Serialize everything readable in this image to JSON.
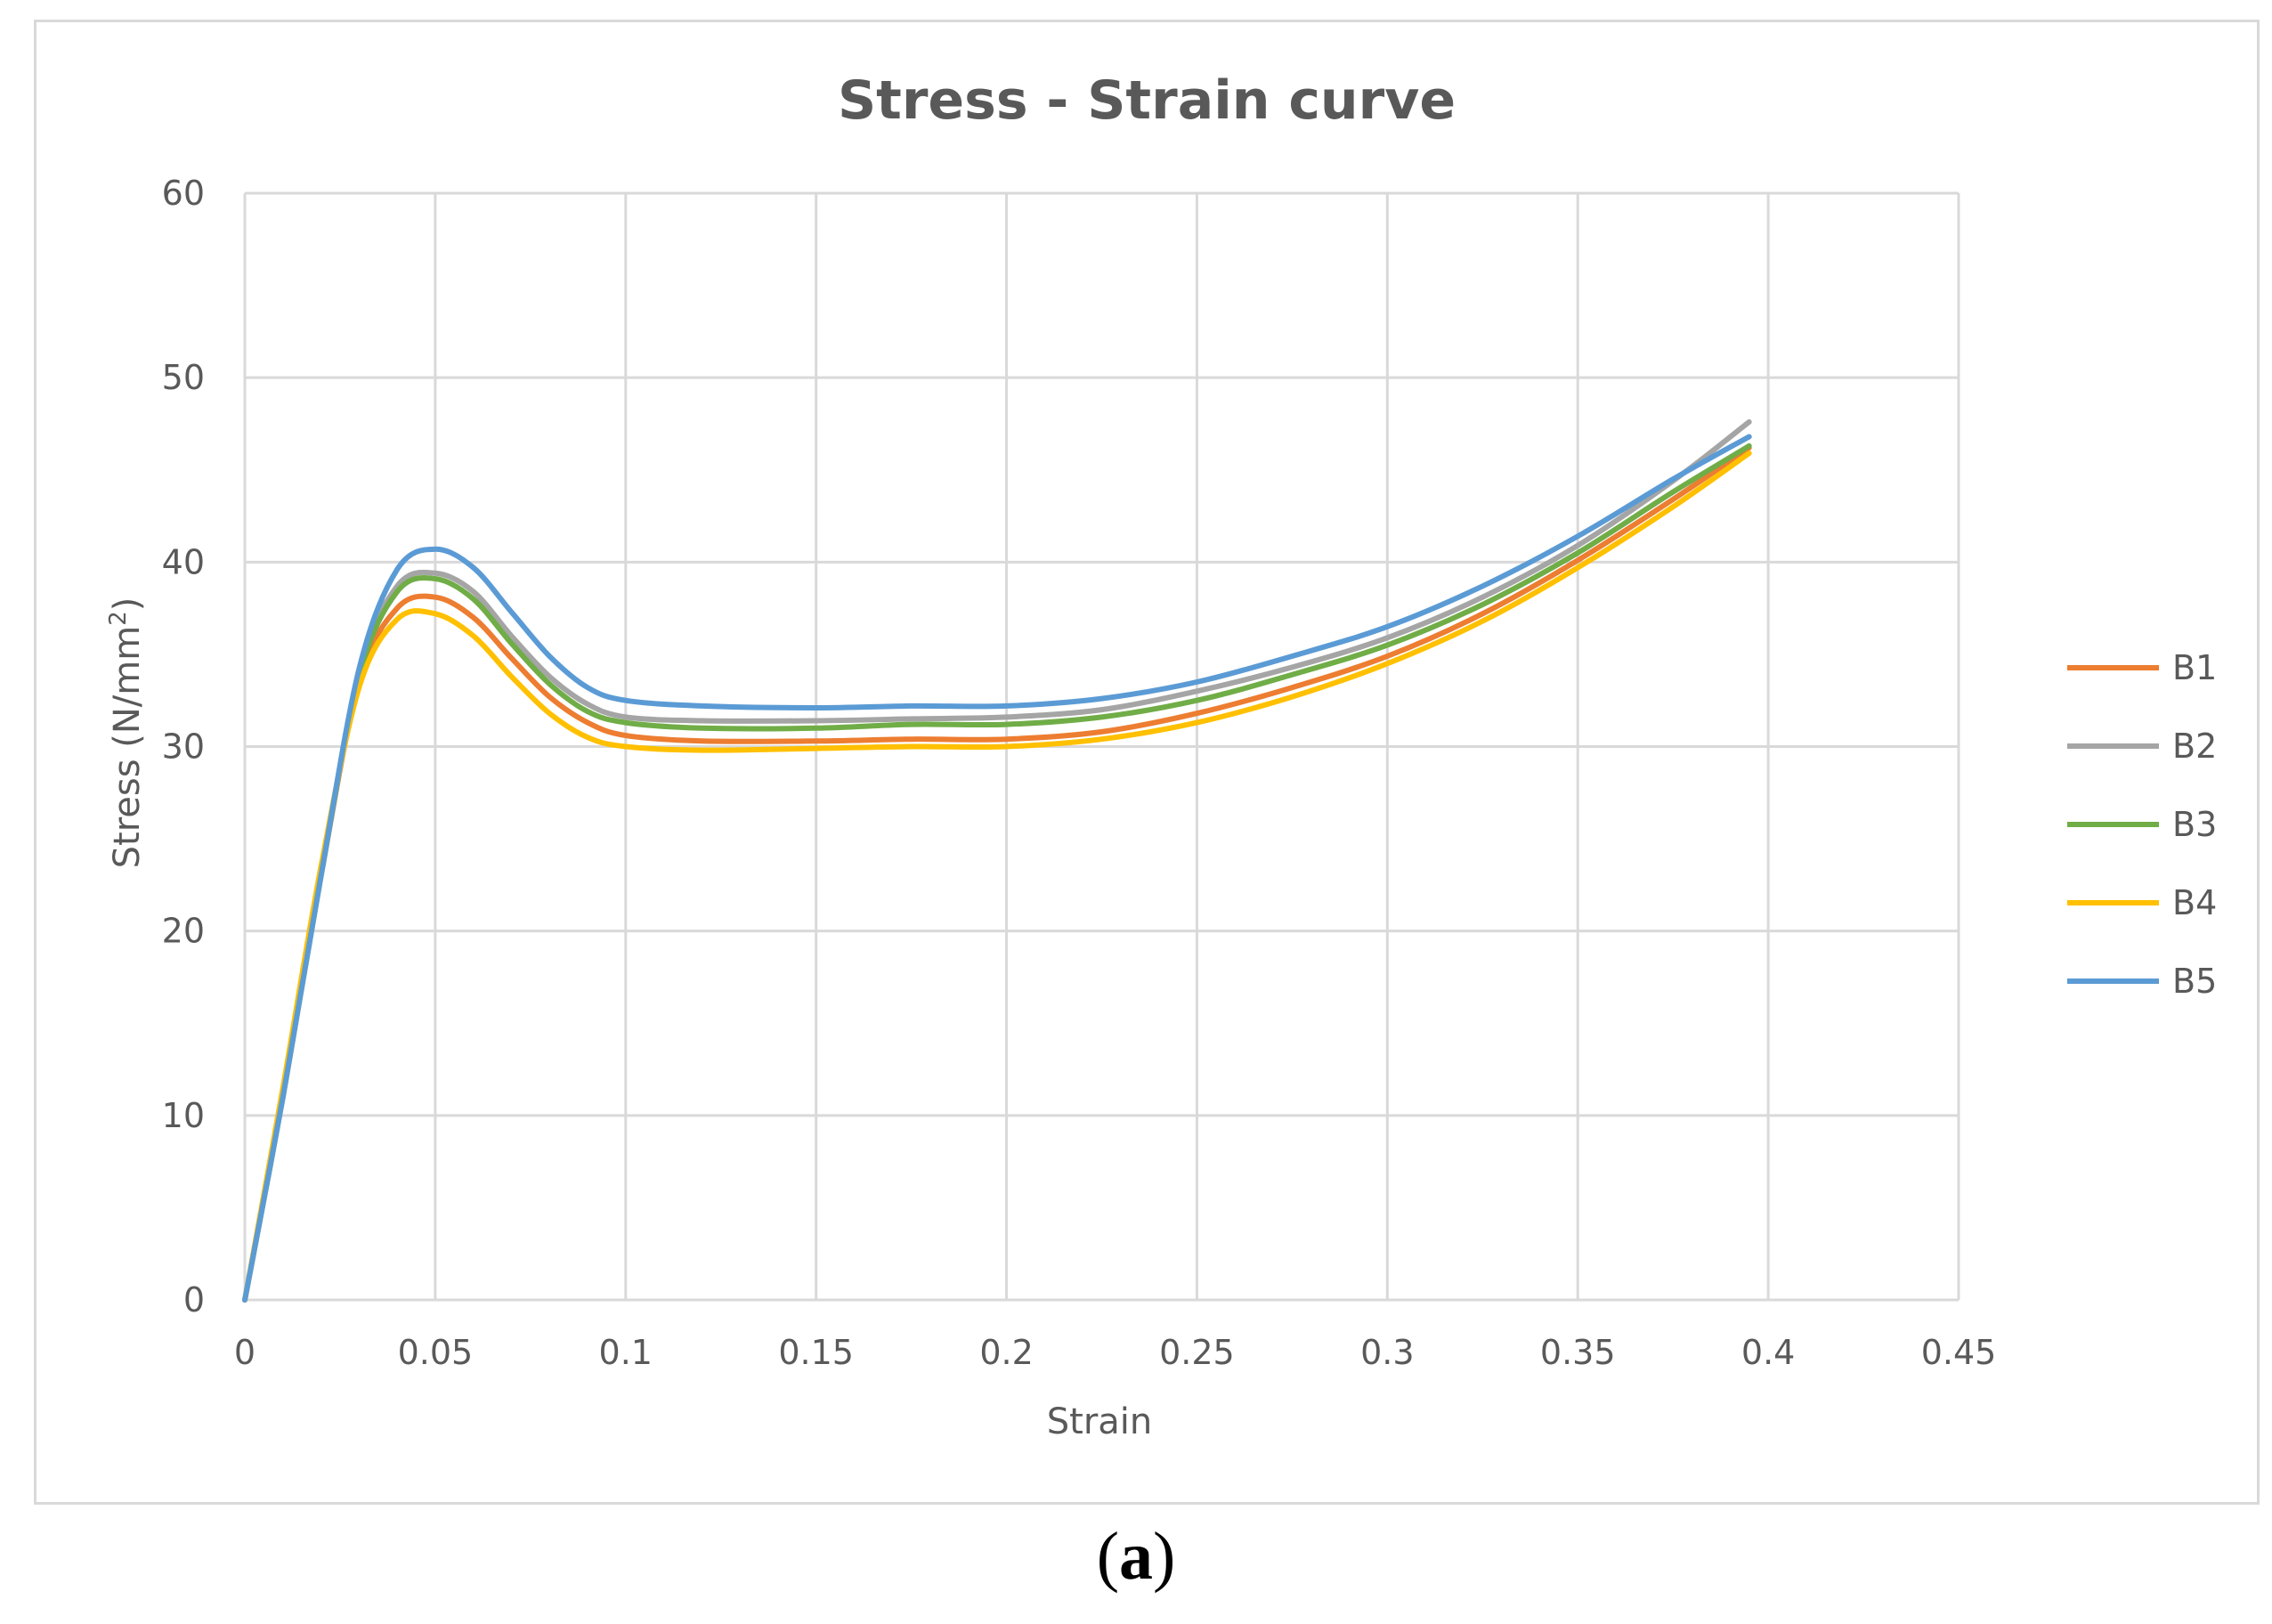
{
  "chart_data": {
    "type": "line",
    "title": "Stress - Strain curve",
    "xlabel": "Strain",
    "ylabel": "Stress (N/mm",
    "ylabel_superscript": "2",
    "ylabel_suffix": ")",
    "xlim": [
      0,
      0.45
    ],
    "ylim": [
      0,
      60
    ],
    "x_ticks": [
      "0",
      "0.05",
      "0.1",
      "0.15",
      "0.2",
      "0.25",
      "0.3",
      "0.35",
      "0.4",
      "0.45"
    ],
    "y_ticks": [
      "0",
      "10",
      "20",
      "30",
      "40",
      "50",
      "60"
    ],
    "grid": true,
    "legend_position": "right",
    "x": [
      0,
      0.01,
      0.02,
      0.03,
      0.04,
      0.05,
      0.06,
      0.07,
      0.08,
      0.09,
      0.1,
      0.12,
      0.15,
      0.175,
      0.2,
      0.225,
      0.25,
      0.275,
      0.3,
      0.325,
      0.35,
      0.375,
      0.395
    ],
    "series": [
      {
        "name": "B1",
        "color": "#ED7D31",
        "values": [
          0,
          11,
          23,
          33.5,
          37.5,
          38.1,
          37,
          34.8,
          32.7,
          31.3,
          30.6,
          30.3,
          30.3,
          30.4,
          30.4,
          30.8,
          31.8,
          33.2,
          34.9,
          37.2,
          40.1,
          43.4,
          46.2
        ]
      },
      {
        "name": "B2",
        "color": "#A5A5A5",
        "values": [
          0,
          11,
          23,
          34,
          38.7,
          39.4,
          38.4,
          36,
          33.8,
          32.3,
          31.6,
          31.4,
          31.4,
          31.5,
          31.6,
          32,
          33,
          34.3,
          35.9,
          38.1,
          40.9,
          44.4,
          47.6
        ]
      },
      {
        "name": "B3",
        "color": "#70AD47",
        "values": [
          0,
          11,
          23,
          33.8,
          38.4,
          39.1,
          38,
          35.6,
          33.4,
          31.9,
          31.3,
          31,
          31,
          31.2,
          31.2,
          31.6,
          32.5,
          33.9,
          35.5,
          37.7,
          40.5,
          43.8,
          46.3
        ]
      },
      {
        "name": "B4",
        "color": "#FFC000",
        "values": [
          0,
          11.5,
          23.5,
          33.2,
          36.9,
          37.2,
          36,
          33.8,
          31.8,
          30.5,
          30,
          29.8,
          29.9,
          30,
          30,
          30.4,
          31.3,
          32.7,
          34.5,
          36.8,
          39.7,
          43,
          45.9
        ]
      },
      {
        "name": "B5",
        "color": "#5B9BD5",
        "values": [
          0,
          11,
          23,
          34.2,
          39.6,
          40.7,
          39.7,
          37.3,
          34.9,
          33.2,
          32.5,
          32.2,
          32.1,
          32.2,
          32.2,
          32.6,
          33.5,
          34.9,
          36.5,
          38.7,
          41.4,
          44.5,
          46.8
        ]
      }
    ]
  },
  "caption": {
    "open": "(",
    "letter": "a",
    "close": ")"
  }
}
